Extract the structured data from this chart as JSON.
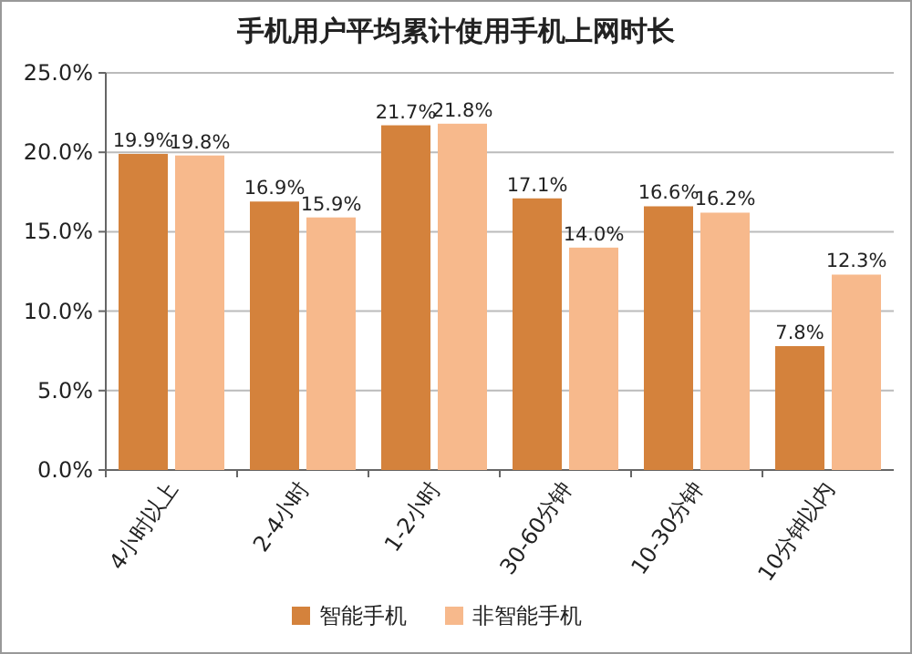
{
  "chart_data": {
    "type": "bar",
    "title": "手机用户平均累计使用手机上网时长",
    "categories": [
      "4小时以上",
      "2-4小时",
      "1-2小时",
      "30-60分钟",
      "10-30分钟",
      "10分钟以内"
    ],
    "series": [
      {
        "name": "智能手机",
        "color": "#d4823c",
        "values": [
          19.9,
          16.9,
          21.7,
          17.1,
          16.6,
          7.8
        ],
        "value_labels": [
          "19.9%",
          "16.9%",
          "21.7%",
          "17.1%",
          "16.6%",
          "7.8%"
        ]
      },
      {
        "name": "非智能手机",
        "color": "#f7b98c",
        "values": [
          19.8,
          15.9,
          21.8,
          14.0,
          16.2,
          12.3
        ],
        "value_labels": [
          "19.8%",
          "15.9%",
          "21.8%",
          "14.0%",
          "16.2%",
          "12.3%"
        ]
      }
    ],
    "ylim": [
      0,
      25
    ],
    "yticks": [
      {
        "value": 0,
        "label": "0.0%"
      },
      {
        "value": 5,
        "label": "5.0%"
      },
      {
        "value": 10,
        "label": "10.0%"
      },
      {
        "value": 15,
        "label": "15.0%"
      },
      {
        "value": 20,
        "label": "20.0%"
      },
      {
        "value": 25,
        "label": "25.0%"
      }
    ],
    "grid": "y",
    "legend": "bottom"
  }
}
